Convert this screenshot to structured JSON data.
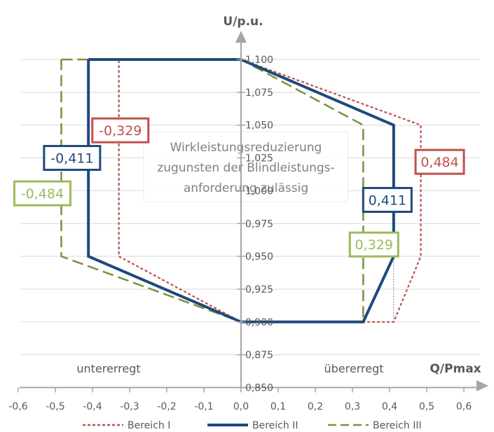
{
  "chart_data": {
    "type": "line",
    "title": "",
    "xlabel": "Q/Pmax",
    "ylabel": "U/p.u.",
    "xlim": [
      -0.6,
      0.6
    ],
    "ylim": [
      0.85,
      1.1
    ],
    "x_ticks": [
      "-0,6",
      "-0,5",
      "-0,4",
      "-0,3",
      "-0,2",
      "-0,1",
      "0,0",
      "0,1",
      "0,2",
      "0,3",
      "0,4",
      "0,5",
      "0,6"
    ],
    "y_ticks": [
      "0,850",
      "0,875",
      "0,900",
      "0,925",
      "0,950",
      "0,975",
      "1,000",
      "1,025",
      "1,050",
      "1,075",
      "1,100"
    ],
    "grid": "horizontal",
    "legend_position": "bottom",
    "annotations": {
      "note": [
        "Wirkleistungsreduzierung",
        "zugunsten der Blindleistungs-",
        "anforderung zulässig"
      ],
      "left_region": "untererregt",
      "right_region": "übererregt"
    },
    "series": [
      {
        "name": "Bereich I",
        "color": "#c0504d",
        "style": "dotted",
        "points": [
          [
            -0.329,
            1.1
          ],
          [
            0.0,
            1.1
          ],
          [
            0.484,
            1.05
          ],
          [
            0.484,
            0.95
          ],
          [
            0.411,
            0.9
          ],
          [
            0.0,
            0.9
          ],
          [
            -0.329,
            0.95
          ],
          [
            -0.329,
            1.1
          ]
        ],
        "labels": [
          "-0,329",
          "0,484"
        ]
      },
      {
        "name": "Bereich II",
        "color": "#1f497d",
        "style": "solid",
        "points": [
          [
            -0.411,
            1.1
          ],
          [
            0.0,
            1.1
          ],
          [
            0.411,
            1.05
          ],
          [
            0.411,
            0.95
          ],
          [
            0.329,
            0.9
          ],
          [
            0.0,
            0.9
          ],
          [
            -0.411,
            0.95
          ],
          [
            -0.411,
            1.1
          ]
        ],
        "labels": [
          "-0,411",
          "0,411"
        ]
      },
      {
        "name": "Bereich III",
        "color": "#77933c",
        "style": "dashed",
        "points": [
          [
            -0.484,
            1.1
          ],
          [
            0.0,
            1.1
          ],
          [
            0.329,
            1.05
          ],
          [
            0.329,
            0.9
          ],
          [
            0.0,
            0.9
          ],
          [
            -0.484,
            0.95
          ],
          [
            -0.484,
            1.1
          ]
        ],
        "labels": [
          "-0,484",
          "0,329"
        ]
      }
    ],
    "helper_line": {
      "color": "#7f7f7f",
      "style": "dotted",
      "points": [
        [
          0.411,
          0.95
        ],
        [
          0.411,
          0.9
        ]
      ]
    },
    "label_colors": {
      "Bereich I": "#c0504d",
      "Bereich II": "#1f497d",
      "Bereich III": "#9bbb59"
    }
  }
}
